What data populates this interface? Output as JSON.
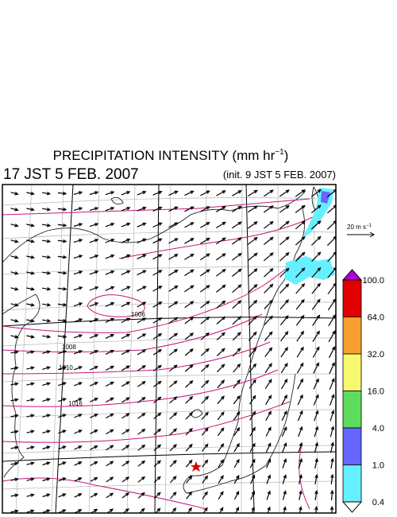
{
  "header": {
    "title": {
      "text": "PRECIPITATION INTENSITY (mm hr",
      "sup": "−1",
      "end": ")"
    },
    "valid_time": "17 JST 5 FEB. 2007",
    "init_time": "(init. 9 JST 5 FEB. 2007)"
  },
  "wind_legend": {
    "text": "20 m s",
    "sup": "−1"
  },
  "colorbar": {
    "labels": [
      "100.0",
      "64.0",
      "32.0",
      "16.0",
      "4.0",
      "1.0",
      "0.4"
    ],
    "colors": [
      "#e00000",
      "#f7a030",
      "#f8f870",
      "#5edc5e",
      "#6666ff",
      "#66f0ff"
    ],
    "over_color": "#b000e0",
    "under_color": "#ffffff"
  },
  "isobar_labels": [
    "1006",
    "1008",
    "1010",
    "1016"
  ]
}
